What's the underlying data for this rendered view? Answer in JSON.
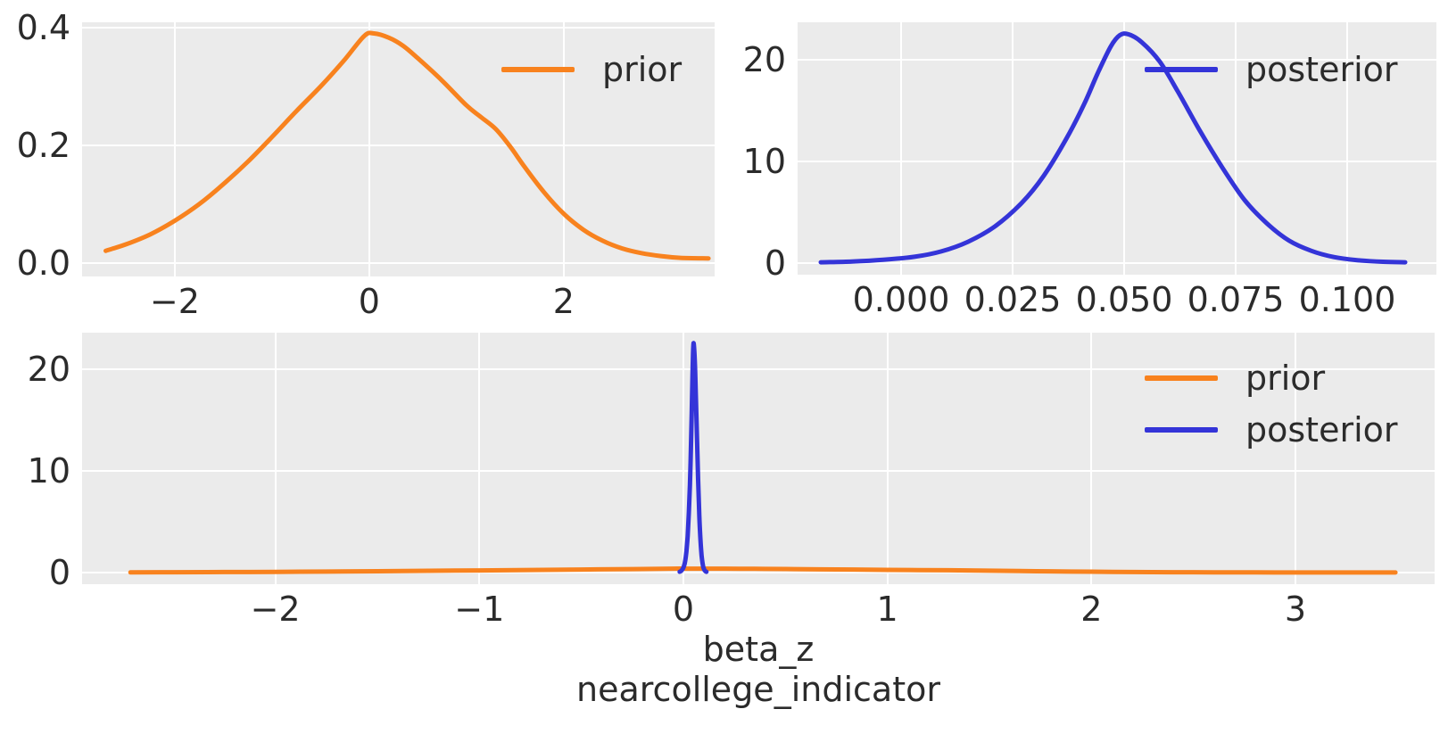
{
  "colors": {
    "prior": "#f8821e",
    "posterior": "#3434d8",
    "plot_bg": "#ebebeb",
    "grid": "#ffffff",
    "text": "#2b2b2b",
    "figure_bg": "#ffffff"
  },
  "xlabel": {
    "line1": "beta_z",
    "line2": "nearcollege_indicator"
  },
  "chart_data": [
    {
      "id": "prior-marginal",
      "type": "line",
      "title": "",
      "xlim": [
        -2.953,
        3.553
      ],
      "ylim": [
        -0.0227,
        0.409
      ],
      "grid": true,
      "legend_position": "upper right",
      "x_ticks": [
        [
          -2,
          "−2"
        ],
        [
          0,
          "0"
        ],
        [
          2,
          "2"
        ]
      ],
      "y_ticks": [
        [
          0.0,
          "0.0"
        ],
        [
          0.2,
          "0.2"
        ],
        [
          0.4,
          "0.4"
        ]
      ],
      "legend": [
        "prior"
      ],
      "series": [
        {
          "name": "prior",
          "color": "prior",
          "points": [
            [
              -2.71,
              0.021
            ],
            [
              -2.5,
              0.032
            ],
            [
              -2.25,
              0.049
            ],
            [
              -2.0,
              0.072
            ],
            [
              -1.75,
              0.1
            ],
            [
              -1.5,
              0.134
            ],
            [
              -1.25,
              0.172
            ],
            [
              -1.0,
              0.214
            ],
            [
              -0.75,
              0.258
            ],
            [
              -0.5,
              0.3
            ],
            [
              -0.25,
              0.346
            ],
            [
              -0.05,
              0.386
            ],
            [
              0.05,
              0.39
            ],
            [
              0.2,
              0.383
            ],
            [
              0.35,
              0.369
            ],
            [
              0.5,
              0.348
            ],
            [
              0.75,
              0.31
            ],
            [
              1.0,
              0.268
            ],
            [
              1.15,
              0.248
            ],
            [
              1.3,
              0.228
            ],
            [
              1.45,
              0.198
            ],
            [
              1.6,
              0.163
            ],
            [
              1.8,
              0.12
            ],
            [
              2.0,
              0.084
            ],
            [
              2.2,
              0.057
            ],
            [
              2.4,
              0.038
            ],
            [
              2.6,
              0.025
            ],
            [
              2.8,
              0.017
            ],
            [
              3.0,
              0.012
            ],
            [
              3.2,
              0.009
            ],
            [
              3.49,
              0.008
            ]
          ]
        }
      ]
    },
    {
      "id": "posterior-marginal",
      "type": "line",
      "title": "",
      "xlim": [
        -0.0232,
        0.12
      ],
      "ylim": [
        -1.14,
        23.68
      ],
      "grid": true,
      "legend_position": "upper right",
      "x_ticks": [
        [
          0.0,
          "0.000"
        ],
        [
          0.025,
          "0.025"
        ],
        [
          0.05,
          "0.050"
        ],
        [
          0.075,
          "0.075"
        ],
        [
          0.1,
          "0.100"
        ]
      ],
      "y_ticks": [
        [
          0,
          "0"
        ],
        [
          10,
          "10"
        ],
        [
          20,
          "20"
        ]
      ],
      "legend": [
        "posterior"
      ],
      "series": [
        {
          "name": "posterior",
          "color": "posterior",
          "points": [
            [
              -0.018,
              0.08
            ],
            [
              -0.011,
              0.16
            ],
            [
              -0.004,
              0.33
            ],
            [
              0.003,
              0.62
            ],
            [
              0.009,
              1.15
            ],
            [
              0.015,
              2.1
            ],
            [
              0.021,
              3.6
            ],
            [
              0.027,
              5.9
            ],
            [
              0.032,
              8.6
            ],
            [
              0.037,
              12.2
            ],
            [
              0.041,
              15.6
            ],
            [
              0.044,
              18.6
            ],
            [
              0.047,
              21.3
            ],
            [
              0.049,
              22.4
            ],
            [
              0.051,
              22.5
            ],
            [
              0.054,
              21.7
            ],
            [
              0.058,
              19.8
            ],
            [
              0.062,
              16.9
            ],
            [
              0.067,
              13.0
            ],
            [
              0.072,
              9.4
            ],
            [
              0.077,
              6.2
            ],
            [
              0.082,
              3.9
            ],
            [
              0.087,
              2.2
            ],
            [
              0.092,
              1.2
            ],
            [
              0.097,
              0.6
            ],
            [
              0.102,
              0.3
            ],
            [
              0.108,
              0.13
            ],
            [
              0.113,
              0.08
            ]
          ]
        }
      ]
    },
    {
      "id": "combined",
      "type": "line",
      "title": "",
      "xlim": [
        -2.947,
        3.682
      ],
      "ylim": [
        -1.14,
        23.6
      ],
      "grid": true,
      "legend_position": "upper right",
      "x_ticks": [
        [
          -2,
          "−2"
        ],
        [
          -1,
          "−1"
        ],
        [
          0,
          "0"
        ],
        [
          1,
          "1"
        ],
        [
          2,
          "2"
        ],
        [
          3,
          "3"
        ]
      ],
      "y_ticks": [
        [
          0,
          "0"
        ],
        [
          10,
          "10"
        ],
        [
          20,
          "20"
        ]
      ],
      "legend": [
        "prior",
        "posterior"
      ],
      "series": [
        {
          "name": "prior",
          "color": "prior",
          "points": [
            [
              -2.71,
              0.021
            ],
            [
              -2.5,
              0.032
            ],
            [
              -2.25,
              0.049
            ],
            [
              -2.0,
              0.072
            ],
            [
              -1.75,
              0.1
            ],
            [
              -1.5,
              0.134
            ],
            [
              -1.25,
              0.172
            ],
            [
              -1.0,
              0.214
            ],
            [
              -0.75,
              0.258
            ],
            [
              -0.5,
              0.3
            ],
            [
              -0.25,
              0.346
            ],
            [
              -0.05,
              0.386
            ],
            [
              0.05,
              0.39
            ],
            [
              0.2,
              0.383
            ],
            [
              0.35,
              0.369
            ],
            [
              0.5,
              0.348
            ],
            [
              0.75,
              0.31
            ],
            [
              1.0,
              0.268
            ],
            [
              1.15,
              0.248
            ],
            [
              1.3,
              0.228
            ],
            [
              1.45,
              0.198
            ],
            [
              1.6,
              0.163
            ],
            [
              1.8,
              0.12
            ],
            [
              2.0,
              0.084
            ],
            [
              2.2,
              0.057
            ],
            [
              2.4,
              0.038
            ],
            [
              2.6,
              0.025
            ],
            [
              2.8,
              0.017
            ],
            [
              3.0,
              0.012
            ],
            [
              3.2,
              0.009
            ],
            [
              3.49,
              0.008
            ]
          ]
        },
        {
          "name": "posterior",
          "color": "posterior",
          "points": [
            [
              -0.018,
              0.08
            ],
            [
              -0.011,
              0.16
            ],
            [
              -0.004,
              0.33
            ],
            [
              0.003,
              0.62
            ],
            [
              0.009,
              1.15
            ],
            [
              0.015,
              2.1
            ],
            [
              0.021,
              3.6
            ],
            [
              0.027,
              5.9
            ],
            [
              0.032,
              8.6
            ],
            [
              0.037,
              12.2
            ],
            [
              0.041,
              15.6
            ],
            [
              0.044,
              18.6
            ],
            [
              0.047,
              21.3
            ],
            [
              0.049,
              22.4
            ],
            [
              0.051,
              22.5
            ],
            [
              0.054,
              21.7
            ],
            [
              0.058,
              19.8
            ],
            [
              0.062,
              16.9
            ],
            [
              0.067,
              13.0
            ],
            [
              0.072,
              9.4
            ],
            [
              0.077,
              6.2
            ],
            [
              0.082,
              3.9
            ],
            [
              0.087,
              2.2
            ],
            [
              0.092,
              1.2
            ],
            [
              0.097,
              0.6
            ],
            [
              0.102,
              0.3
            ],
            [
              0.108,
              0.13
            ],
            [
              0.113,
              0.08
            ]
          ]
        }
      ]
    }
  ]
}
